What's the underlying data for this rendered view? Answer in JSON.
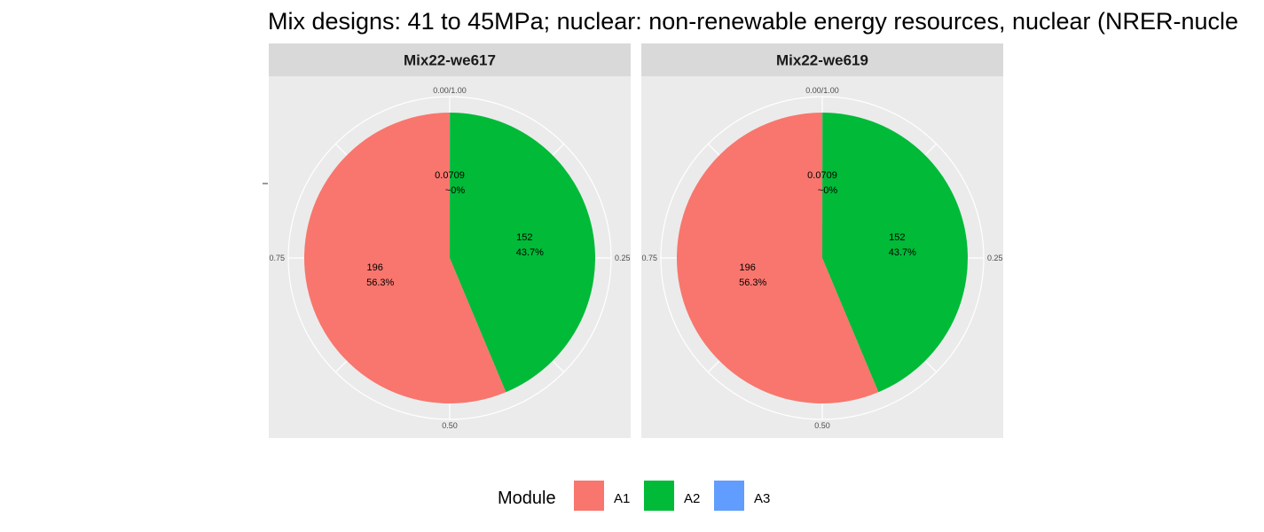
{
  "chart_data": {
    "type": "pie",
    "title": "Mix designs: 41 to 45MPa; nuclear: non-renewable energy resources, nuclear (NRER-nucle",
    "angle_ticks": [
      "0.00/1.00",
      "0.25",
      "0.50",
      "0.75"
    ],
    "legend": {
      "title": "Module",
      "position": "bottom",
      "entries": [
        {
          "label": "A1",
          "color": "#F8766D"
        },
        {
          "label": "A2",
          "color": "#00BA38"
        },
        {
          "label": "A3",
          "color": "#619CFF"
        }
      ]
    },
    "facets": [
      {
        "name": "Mix22-we617",
        "slices": [
          {
            "module": "A3",
            "value": 0.0709,
            "label_value": "0.0709",
            "label_percent": "~0%",
            "color": "#619CFF"
          },
          {
            "module": "A2",
            "value": 152,
            "label_value": "152",
            "label_percent": "43.7%",
            "color": "#00BA38"
          },
          {
            "module": "A1",
            "value": 196,
            "label_value": "196",
            "label_percent": "56.3%",
            "color": "#F8766D"
          }
        ]
      },
      {
        "name": "Mix22-we619",
        "slices": [
          {
            "module": "A3",
            "value": 0.0709,
            "label_value": "0.0709",
            "label_percent": "~0%",
            "color": "#619CFF"
          },
          {
            "module": "A2",
            "value": 152,
            "label_value": "152",
            "label_percent": "43.7%",
            "color": "#00BA38"
          },
          {
            "module": "A1",
            "value": 196,
            "label_value": "196",
            "label_percent": "56.3%",
            "color": "#F8766D"
          }
        ]
      }
    ],
    "colors": {
      "panel_background": "#EBEBEB",
      "strip_background": "#D9D9D9",
      "grid": "#FFFFFF"
    }
  }
}
